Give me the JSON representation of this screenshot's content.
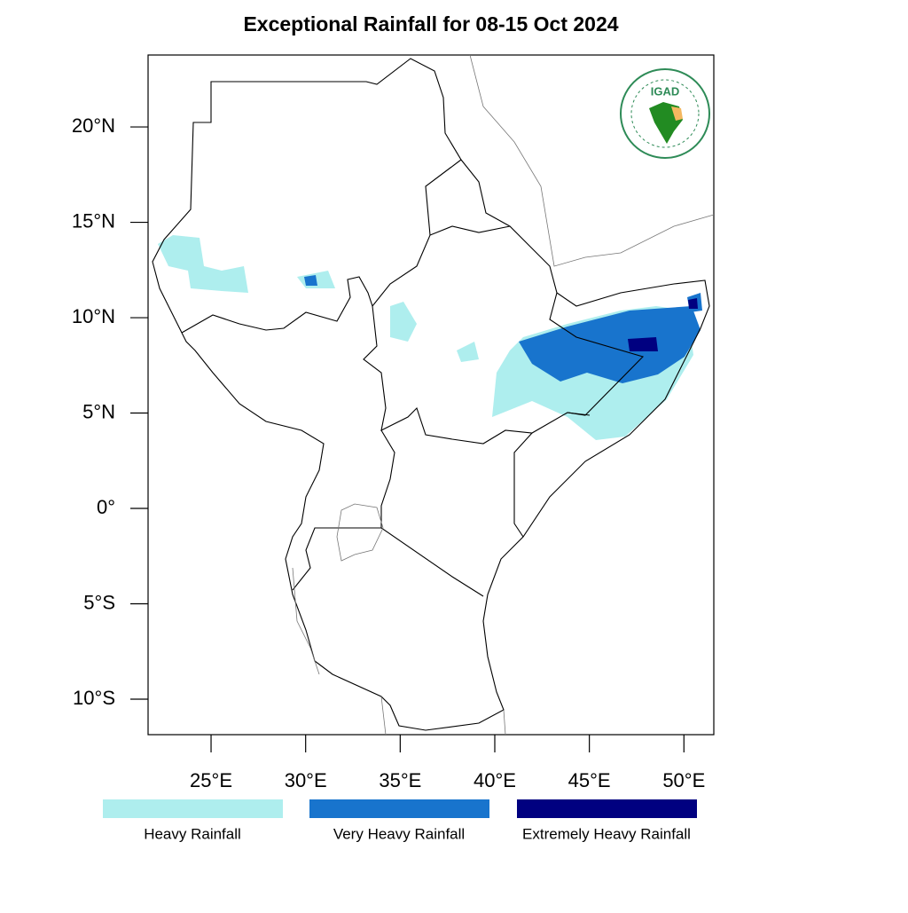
{
  "map": {
    "title": "Exceptional Rainfall for 08-15 Oct 2024",
    "logo": "IGAD",
    "xlim": [
      21.67,
      51.58
    ],
    "ylim": [
      -11.86,
      23.77
    ],
    "xticks": [
      {
        "value": 25,
        "label": "25°E"
      },
      {
        "value": 30,
        "label": "30°E"
      },
      {
        "value": 35,
        "label": "35°E"
      },
      {
        "value": 40,
        "label": "40°E"
      },
      {
        "value": 45,
        "label": "45°E"
      },
      {
        "value": 50,
        "label": "50°E"
      }
    ],
    "yticks": [
      {
        "value": 20,
        "label": "20°N"
      },
      {
        "value": 15,
        "label": "15°N"
      },
      {
        "value": 10,
        "label": "10°N"
      },
      {
        "value": 5,
        "label": "5°N"
      },
      {
        "value": 0,
        "label": "0°"
      },
      {
        "value": -5,
        "label": "5°S"
      },
      {
        "value": -10,
        "label": "10°S"
      }
    ],
    "legend": [
      {
        "label": "Heavy Rainfall",
        "color": "#aeeeee"
      },
      {
        "label": "Very Heavy Rainfall",
        "color": "#1874cd"
      },
      {
        "label": "Extremely Heavy Rainfall",
        "color": "#000080"
      }
    ]
  }
}
